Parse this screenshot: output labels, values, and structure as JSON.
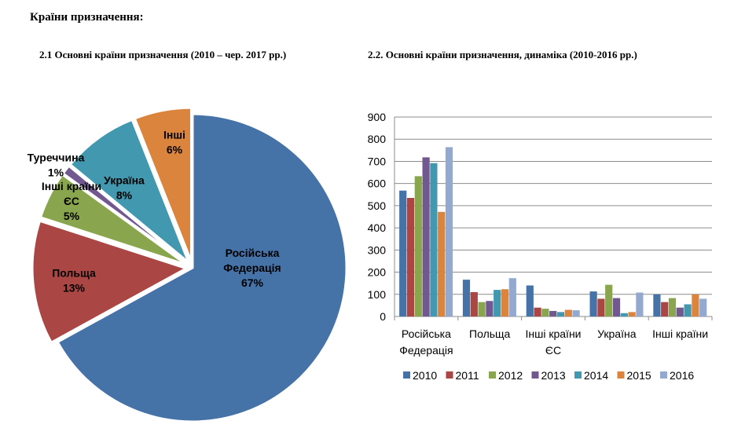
{
  "page_heading": "Країни призначення:",
  "colors": {
    "russia": "#4572A7",
    "poland": "#AA4643",
    "eu": "#89A54E",
    "turkey": "#71588F",
    "ukraine": "#4198AF",
    "other": "#DB843D",
    "y2016": "#93A9CF"
  },
  "chart_data": [
    {
      "type": "pie",
      "title": "2.1 Основні країни призначення (2010 – чер. 2017 рр.)",
      "slices": [
        {
          "label_lines": [
            "Російська",
            "Федерація",
            "67%"
          ],
          "value": 67,
          "color": "#4572A7"
        },
        {
          "label_lines": [
            "Польща",
            "13%"
          ],
          "value": 13,
          "color": "#AA4643"
        },
        {
          "label_lines": [
            "Інші країни",
            "ЄС",
            "5%"
          ],
          "value": 5,
          "color": "#89A54E"
        },
        {
          "label_lines": [
            "Туреччина",
            "1%"
          ],
          "value": 1,
          "color": "#71588F"
        },
        {
          "label_lines": [
            "Україна",
            "8%"
          ],
          "value": 8,
          "color": "#4198AF"
        },
        {
          "label_lines": [
            "Інші",
            "6%"
          ],
          "value": 6,
          "color": "#DB843D"
        }
      ]
    },
    {
      "type": "bar",
      "title": "2.2. Основні країни призначення, динаміка (2010-2016 рр.)",
      "categories": [
        [
          "Російська",
          "Федерація"
        ],
        [
          "Польща"
        ],
        [
          "Інші країни",
          "ЄС"
        ],
        [
          "Україна"
        ],
        [
          "Інші країни"
        ]
      ],
      "ylim": [
        0,
        900
      ],
      "yticks": [
        "0",
        "100",
        "200",
        "300",
        "400",
        "500",
        "600",
        "700",
        "800",
        "900"
      ],
      "grid": true,
      "legend_position": "bottom",
      "series": [
        {
          "name": "2010",
          "color": "#4572A7",
          "values": [
            568,
            166,
            140,
            113,
            100
          ]
        },
        {
          "name": "2011",
          "color": "#AA4643",
          "values": [
            535,
            110,
            40,
            80,
            65
          ]
        },
        {
          "name": "2012",
          "color": "#89A54E",
          "values": [
            633,
            65,
            35,
            143,
            83
          ]
        },
        {
          "name": "2013",
          "color": "#71588F",
          "values": [
            718,
            70,
            25,
            83,
            40
          ]
        },
        {
          "name": "2014",
          "color": "#4198AF",
          "values": [
            692,
            120,
            20,
            15,
            55
          ]
        },
        {
          "name": "2015",
          "color": "#DB843D",
          "values": [
            472,
            123,
            30,
            20,
            100
          ]
        },
        {
          "name": "2016",
          "color": "#93A9CF",
          "values": [
            764,
            173,
            28,
            108,
            80
          ]
        }
      ]
    }
  ]
}
